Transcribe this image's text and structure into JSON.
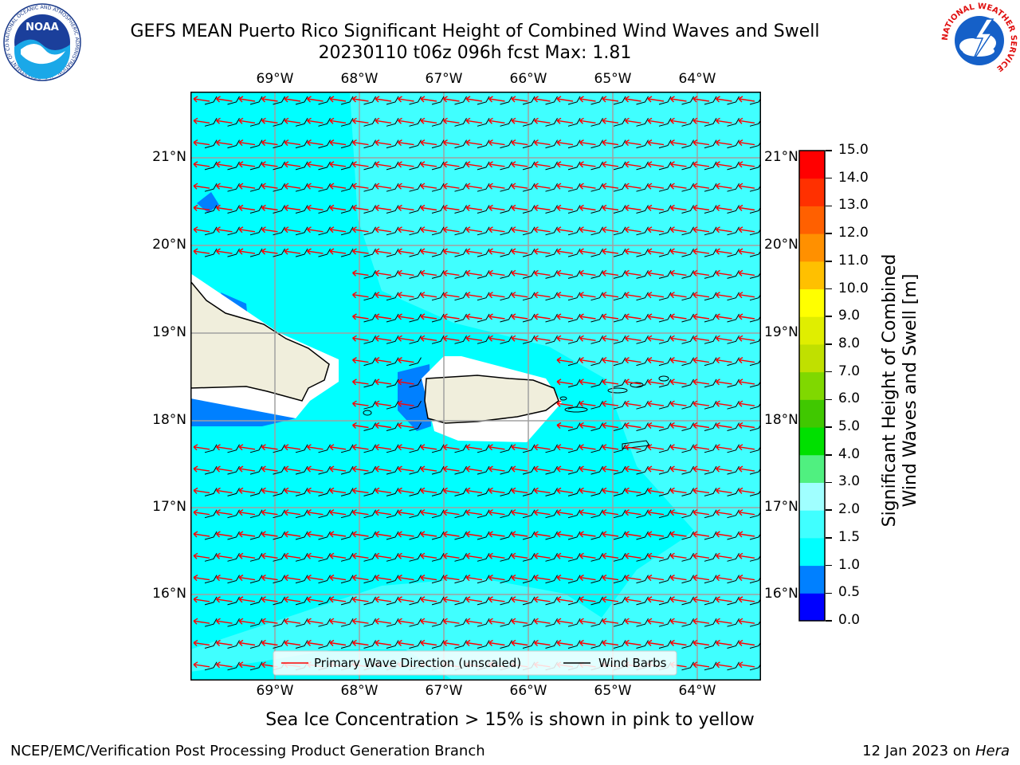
{
  "header": {
    "title_line1": "GEFS MEAN Puerto Rico Significant Height of Combined Wind Waves and Swell",
    "title_line2": "20230110 t06z 096h fcst   Max: 1.81",
    "left_logo_text": "NOAA",
    "left_logo_ring_text": "NATIONAL OCEANIC AND ATMOSPHERIC ADMINISTRATION · U.S. DEPARTMENT OF COMMERCE",
    "right_logo_ring_text": "NATIONAL WEATHER SERVICE"
  },
  "map": {
    "lon_ticks_top": [
      "69°W",
      "68°W",
      "67°W",
      "66°W",
      "65°W",
      "64°W"
    ],
    "lon_ticks_bottom": [
      "69°W",
      "68°W",
      "67°W",
      "66°W",
      "65°W",
      "64°W"
    ],
    "lat_ticks_left": [
      "21°N",
      "20°N",
      "19°N",
      "18°N",
      "17°N",
      "16°N"
    ],
    "lat_ticks_right": [
      "21°N",
      "20°N",
      "19°N",
      "18°N",
      "17°N",
      "16°N"
    ],
    "colors": {
      "sea_main": "#00ffff",
      "sea_light": "#40ffff",
      "sea_blue": "#0080ff",
      "land": "#f0eedc",
      "barb": "#000000",
      "arrow": "#ff0000",
      "grid": "#a0a0a0"
    },
    "legend": {
      "wave_label": "Primary Wave Direction (unscaled)",
      "barb_label": "Wind Barbs"
    }
  },
  "colorbar": {
    "label_line1": "Significant Height of Combined",
    "label_line2": "Wind Waves and Swell [m]",
    "ticks": [
      "0.0",
      "0.5",
      "1.0",
      "1.5",
      "2.0",
      "3.0",
      "4.0",
      "5.0",
      "6.0",
      "7.0",
      "8.0",
      "9.0",
      "10.0",
      "11.0",
      "12.0",
      "13.0",
      "14.0",
      "15.0"
    ],
    "colors": [
      "#0000ff",
      "#0080ff",
      "#00ffff",
      "#40ffff",
      "#a0ffff",
      "#50f080",
      "#00e000",
      "#40c800",
      "#80d800",
      "#c0e000",
      "#e0ee00",
      "#ffff00",
      "#ffc000",
      "#ff9000",
      "#ff6000",
      "#ff3000",
      "#ff0000"
    ]
  },
  "footer": {
    "sea_ice_note": "Sea Ice Concentration > 15% is shown in pink to yellow",
    "branch": "NCEP/EMC/Verification Post Processing Product Generation Branch",
    "date_prefix": "12 Jan 2023 on ",
    "host": "Hera"
  }
}
